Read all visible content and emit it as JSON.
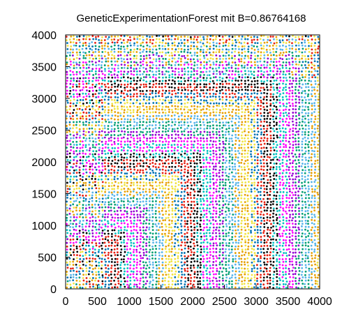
{
  "chart_data": {
    "type": "scatter",
    "title": "GeneticExperimentationForest mit B=0.86764168",
    "xlabel": "",
    "ylabel": "",
    "xlim": [
      0,
      4000
    ],
    "ylim": [
      0,
      4000
    ],
    "x_ticks": [
      0,
      500,
      1000,
      1500,
      2000,
      2500,
      3000,
      3500,
      4000
    ],
    "y_ticks": [
      0,
      500,
      1000,
      1500,
      2000,
      2500,
      3000,
      3500,
      4000
    ],
    "x_tick_labels": [
      "0",
      "500",
      "1000",
      "1500",
      "2000",
      "2500",
      "3000",
      "3500",
      "4000"
    ],
    "y_tick_labels": [
      "0",
      "500",
      "1000",
      "1500",
      "2000",
      "2500",
      "3000",
      "3500",
      "4000"
    ],
    "grid": false,
    "legend": "none",
    "marker": "small-dots",
    "colors": [
      "#9400d3",
      "#009e73",
      "#56b4e9",
      "#e69f00",
      "#f0e442",
      "#0072b2",
      "#e51e10",
      "#000000",
      "#00c0c0",
      "#ff00ff"
    ],
    "point_grid_spacing": 50,
    "pattern": "nested L-shaped bands: color changes with max(x, y), denser/mixed near the left and top edges"
  }
}
